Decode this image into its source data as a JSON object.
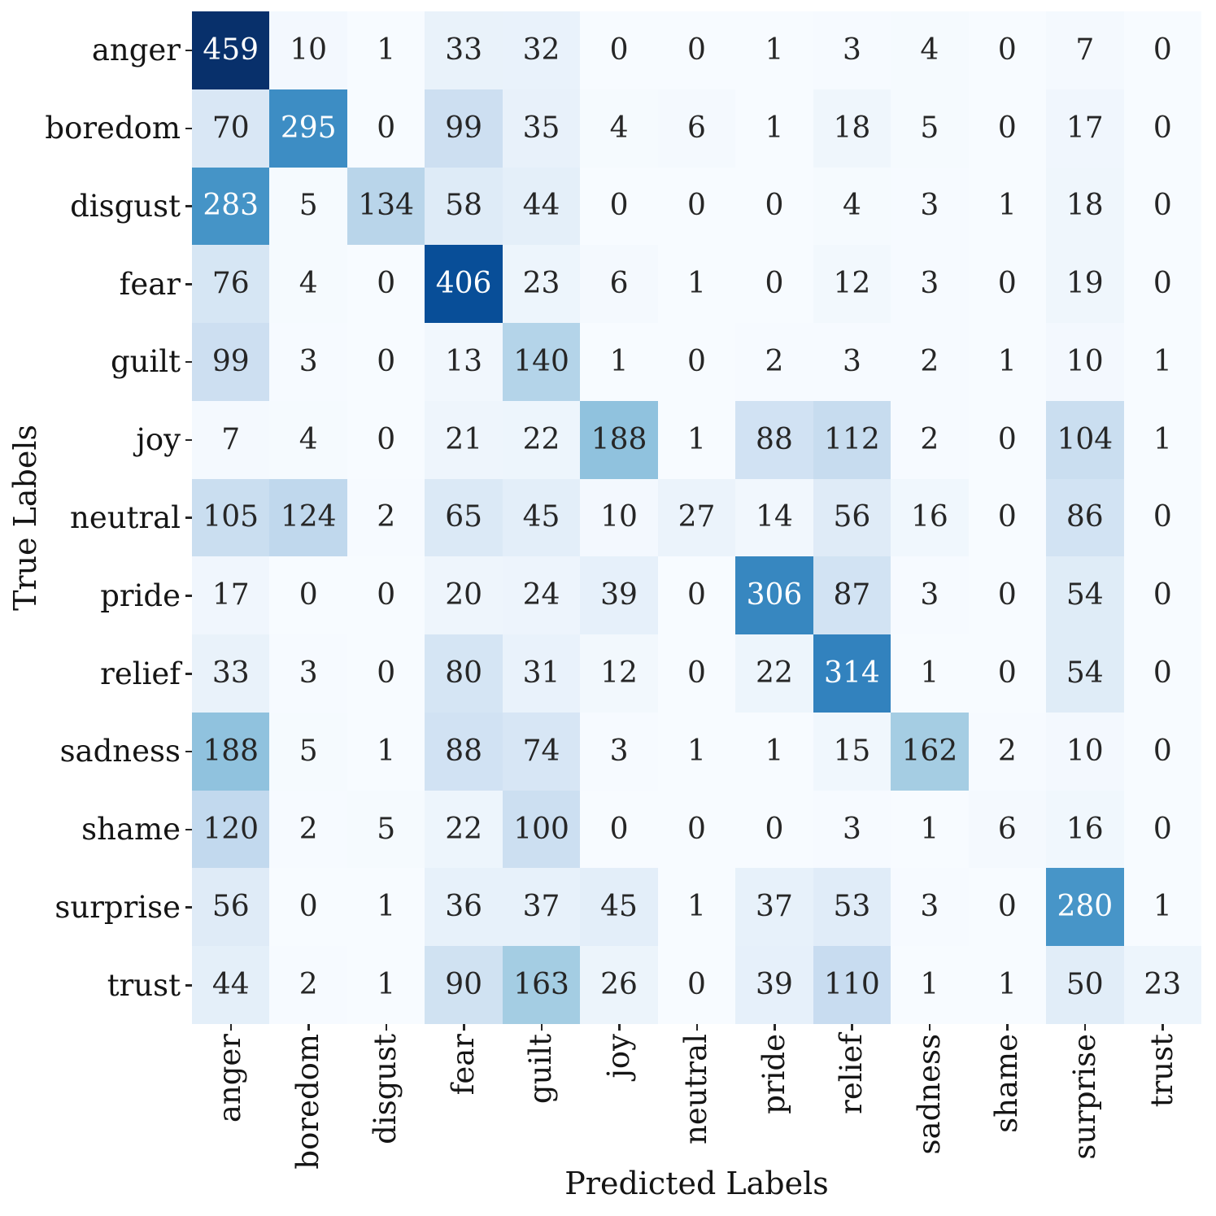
{
  "chart_data": {
    "type": "heatmap",
    "xlabel": "Predicted Labels",
    "ylabel": "True Labels",
    "categories": [
      "anger",
      "boredom",
      "disgust",
      "fear",
      "guilt",
      "joy",
      "neutral",
      "pride",
      "relief",
      "sadness",
      "shame",
      "surprise",
      "trust"
    ],
    "matrix": [
      [
        459,
        10,
        1,
        33,
        32,
        0,
        0,
        1,
        3,
        4,
        0,
        7,
        0
      ],
      [
        70,
        295,
        0,
        99,
        35,
        4,
        6,
        1,
        18,
        5,
        0,
        17,
        0
      ],
      [
        283,
        5,
        134,
        58,
        44,
        0,
        0,
        0,
        4,
        3,
        1,
        18,
        0
      ],
      [
        76,
        4,
        0,
        406,
        23,
        6,
        1,
        0,
        12,
        3,
        0,
        19,
        0
      ],
      [
        99,
        3,
        0,
        13,
        140,
        1,
        0,
        2,
        3,
        2,
        1,
        10,
        1
      ],
      [
        7,
        4,
        0,
        21,
        22,
        188,
        1,
        88,
        112,
        2,
        0,
        104,
        1
      ],
      [
        105,
        124,
        2,
        65,
        45,
        10,
        27,
        14,
        56,
        16,
        0,
        86,
        0
      ],
      [
        17,
        0,
        0,
        20,
        24,
        39,
        0,
        306,
        87,
        3,
        0,
        54,
        0
      ],
      [
        33,
        3,
        0,
        80,
        31,
        12,
        0,
        22,
        314,
        1,
        0,
        54,
        0
      ],
      [
        188,
        5,
        1,
        88,
        74,
        3,
        1,
        1,
        15,
        162,
        2,
        10,
        0
      ],
      [
        120,
        2,
        5,
        22,
        100,
        0,
        0,
        0,
        3,
        1,
        6,
        16,
        0
      ],
      [
        56,
        0,
        1,
        36,
        37,
        45,
        1,
        37,
        53,
        3,
        0,
        280,
        1
      ],
      [
        44,
        2,
        1,
        90,
        163,
        26,
        0,
        39,
        110,
        1,
        1,
        50,
        23
      ]
    ],
    "vmin": 0,
    "vmax": 459,
    "colormap": "Blues",
    "colormap_stops": [
      "#f7fbff",
      "#deebf7",
      "#c6dbef",
      "#9ecae1",
      "#6baed6",
      "#4292c6",
      "#2171b5",
      "#08519c",
      "#08306b"
    ],
    "annotation_dark_text": "#262626",
    "annotation_light_text": "#ffffff",
    "grid": false,
    "legend": "none"
  }
}
